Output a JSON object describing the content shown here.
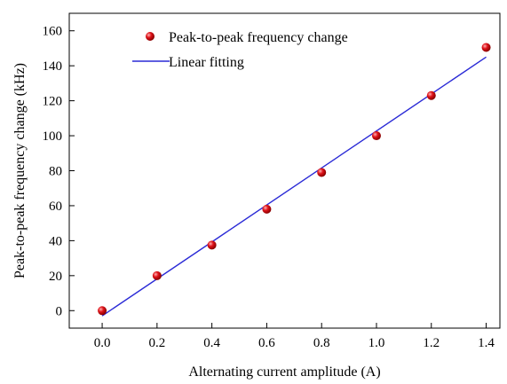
{
  "chart_data": {
    "type": "scatter",
    "title": "",
    "xlabel": "Alternating current amplitude (A)",
    "ylabel": "Peak-to-peak frequency change (kHz)",
    "xlim": [
      -0.12,
      1.45
    ],
    "ylim": [
      -10,
      170
    ],
    "xticks": [
      0.0,
      0.2,
      0.4,
      0.6,
      0.8,
      1.0,
      1.2,
      1.4
    ],
    "xtick_labels": [
      "0.0",
      "0.2",
      "0.4",
      "0.6",
      "0.8",
      "1.0",
      "1.2",
      "1.4"
    ],
    "yticks": [
      0,
      20,
      40,
      60,
      80,
      100,
      120,
      140,
      160
    ],
    "ytick_labels": [
      "0",
      "20",
      "40",
      "60",
      "80",
      "100",
      "120",
      "140",
      "160"
    ],
    "grid": false,
    "legend_position": "top-center",
    "series": [
      {
        "name": "Peak-to-peak frequency change",
        "kind": "scatter",
        "color": "#e0141b",
        "x": [
          0.0,
          0.2,
          0.4,
          0.6,
          0.8,
          1.0,
          1.2,
          1.4
        ],
        "y": [
          0,
          20,
          37.5,
          58,
          79,
          100,
          123,
          150.5
        ]
      },
      {
        "name": "Linear fitting",
        "kind": "line",
        "color": "#2a2ad6",
        "x": [
          0.0,
          1.4
        ],
        "y": [
          -3,
          145
        ]
      }
    ]
  }
}
